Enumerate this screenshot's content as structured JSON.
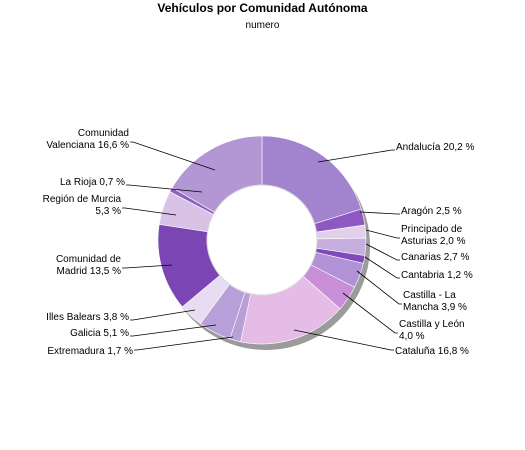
{
  "title": "Vehículos por Comunidad Autónoma",
  "subtitle": "numero",
  "chart_data": {
    "type": "pie",
    "title": "Vehículos por Comunidad Autónoma",
    "subtitle": "numero",
    "donut": true,
    "slices": [
      {
        "label": "Andalucía 20,2 %",
        "lines": [
          "Andalucía 20,2 %"
        ],
        "value": 20.2,
        "color": "#a183ce"
      },
      {
        "label": "Aragón 2,5 %",
        "lines": [
          "Aragón 2,5 %"
        ],
        "value": 2.5,
        "color": "#8e57c1"
      },
      {
        "label": "Principado de Asturias 2,0 %",
        "lines": [
          "Principado de",
          "Asturias 2,0 %"
        ],
        "value": 2.0,
        "color": "#e2cfea"
      },
      {
        "label": "Canarias 2,7 %",
        "lines": [
          "Canarias 2,7 %"
        ],
        "value": 2.7,
        "color": "#c6aedf"
      },
      {
        "label": "Cantabria 1,2 %",
        "lines": [
          "Cantabria 1,2 %"
        ],
        "value": 1.2,
        "color": "#7f49b9"
      },
      {
        "label": "Castilla - La Mancha 3,9 %",
        "lines": [
          "Castilla - La",
          "Mancha 3,9 %"
        ],
        "value": 3.9,
        "color": "#b192d6"
      },
      {
        "label": "Castilla y León 4,0 %",
        "lines": [
          "Castilla y León",
          "4,0 %"
        ],
        "value": 4.0,
        "color": "#c88fd8"
      },
      {
        "label": "Cataluña 16,8 %",
        "lines": [
          "Cataluña 16,8 %"
        ],
        "value": 16.8,
        "color": "#e5bce6"
      },
      {
        "label": "Extremadura 1,7 %",
        "lines": [
          "Extremadura 1,7 %"
        ],
        "value": 1.7,
        "color": "#b89fd5"
      },
      {
        "label": "Galicia 5,1 %",
        "lines": [
          "Galicia 5,1 %"
        ],
        "value": 5.1,
        "color": "#b7a0da"
      },
      {
        "label": "Illes Balears 3,8 %",
        "lines": [
          "Illes Balears 3,8 %"
        ],
        "value": 3.8,
        "color": "#e7dcf2"
      },
      {
        "label": "Comunidad de Madrid 13,5 %",
        "lines": [
          "Comunidad de",
          "Madrid 13,5 %"
        ],
        "value": 13.5,
        "color": "#7c45b4"
      },
      {
        "label": "Región de Murcia 5,3 %",
        "lines": [
          "Región de Murcia",
          "5,3 %"
        ],
        "value": 5.3,
        "color": "#d8c3e6"
      },
      {
        "label": "La Rioja 0,7 %",
        "lines": [
          "La Rioja 0,7 %"
        ],
        "value": 0.7,
        "color": "#8f5fc0"
      },
      {
        "label": "Comunidad Valenciana 16,6 %",
        "lines": [
          "Comunidad",
          "Valenciana 16,6 %"
        ],
        "value": 16.6,
        "color": "#b397d5"
      }
    ]
  }
}
